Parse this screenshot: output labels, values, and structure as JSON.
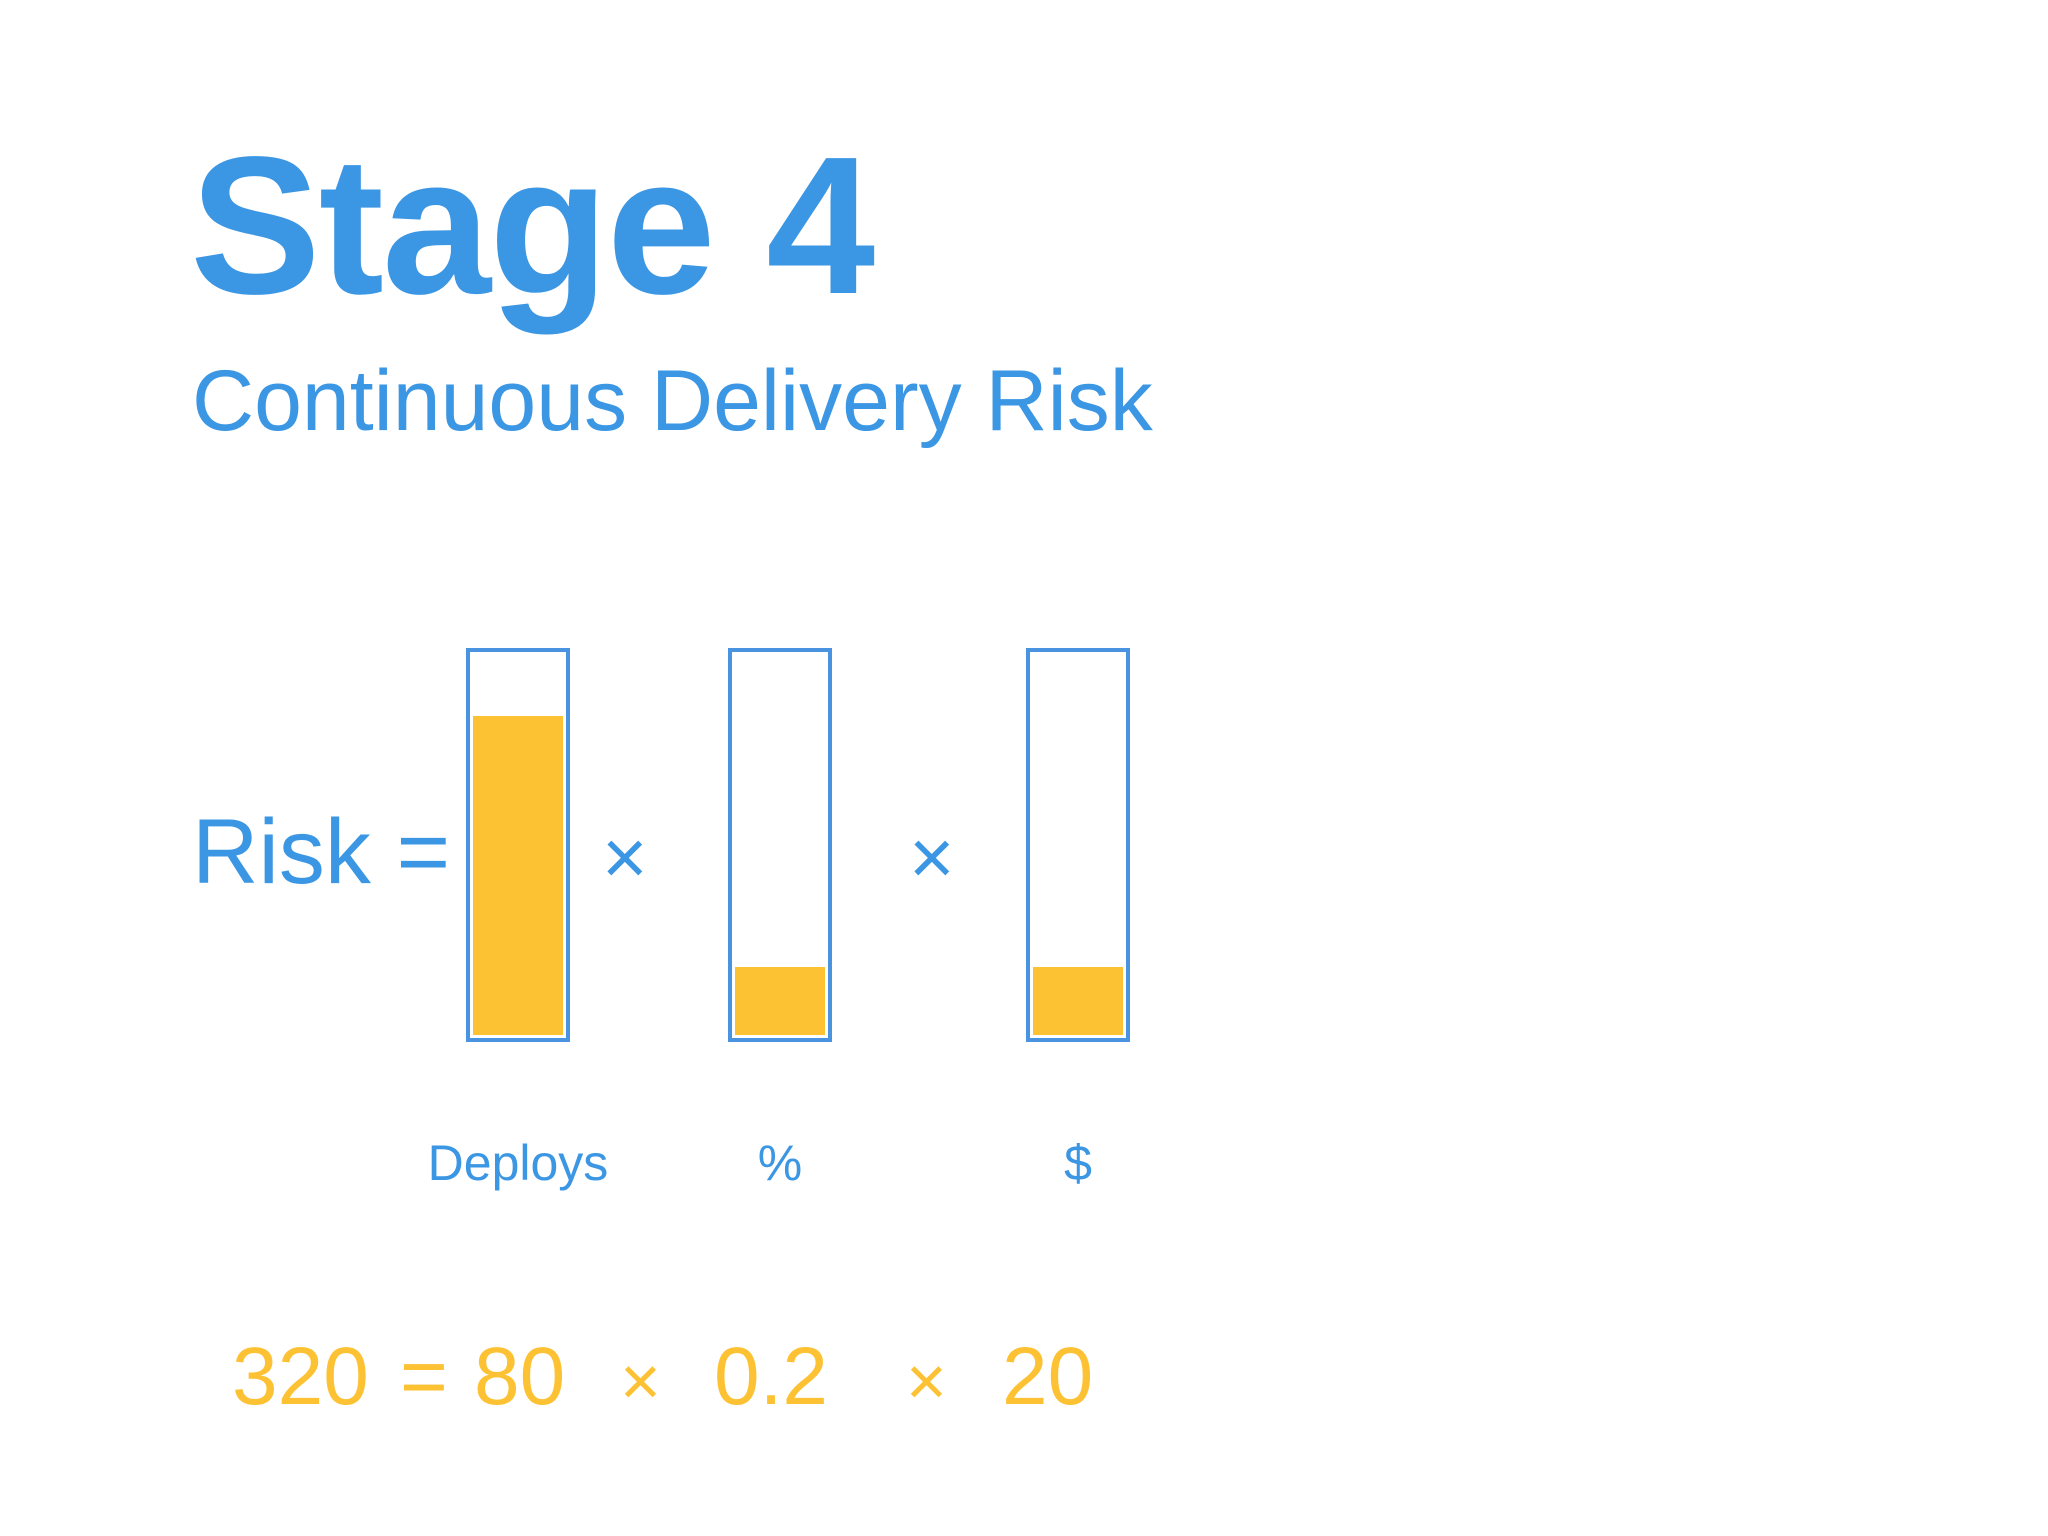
{
  "slide": {
    "title": "Stage 4",
    "subtitle": "Continuous Delivery Risk"
  },
  "formula": {
    "lhs": "Risk =",
    "operator_1": "×",
    "operator_2": "×"
  },
  "gauges": [
    {
      "label": "Deploys",
      "fill_fraction": 0.84
    },
    {
      "label": "%",
      "fill_fraction": 0.18
    },
    {
      "label": "$",
      "fill_fraction": 0.18
    }
  ],
  "equation": {
    "result": "320",
    "equals": "=",
    "value_1": "80",
    "op_1": "×",
    "value_2": "0.2",
    "op_2": "×",
    "value_3": "20"
  },
  "colors": {
    "blue": "#3b96e3",
    "yellow": "#fdc233"
  }
}
